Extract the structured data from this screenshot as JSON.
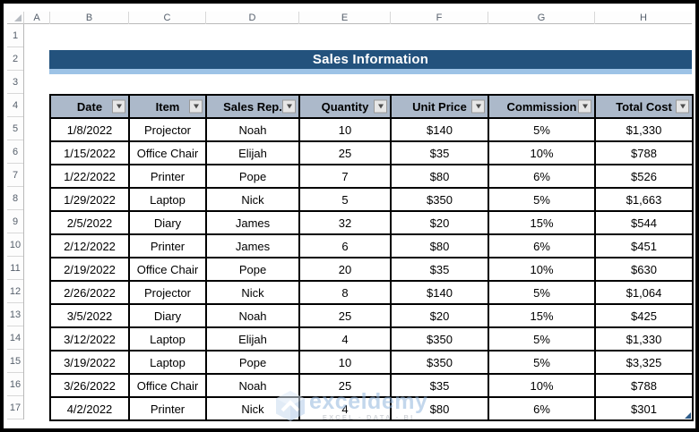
{
  "colors": {
    "banner_bg": "#23527D",
    "banner_accent": "#9DC3E6",
    "header_fill": "#ACB9CA",
    "grid_border": "#000000",
    "watermark_blue": "#93B7DE",
    "chrome_text": "#56606C"
  },
  "title_banner": {
    "text": "Sales Information"
  },
  "spreadsheet": {
    "column_letters": [
      "A",
      "B",
      "C",
      "D",
      "E",
      "F",
      "G",
      "H"
    ],
    "row_numbers": [
      "1",
      "2",
      "3",
      "4",
      "5",
      "6",
      "7",
      "8",
      "9",
      "10",
      "11",
      "12",
      "13",
      "14",
      "15",
      "16",
      "17"
    ]
  },
  "table": {
    "columns": [
      {
        "label": "Date"
      },
      {
        "label": "Item"
      },
      {
        "label": "Sales Rep."
      },
      {
        "label": "Quantity"
      },
      {
        "label": "Unit Price"
      },
      {
        "label": "Commission"
      },
      {
        "label": "Total Cost"
      }
    ],
    "rows": [
      [
        "1/8/2022",
        "Projector",
        "Noah",
        "10",
        "$140",
        "5%",
        "$1,330"
      ],
      [
        "1/15/2022",
        "Office Chair",
        "Elijah",
        "25",
        "$35",
        "10%",
        "$788"
      ],
      [
        "1/22/2022",
        "Printer",
        "Pope",
        "7",
        "$80",
        "6%",
        "$526"
      ],
      [
        "1/29/2022",
        "Laptop",
        "Nick",
        "5",
        "$350",
        "5%",
        "$1,663"
      ],
      [
        "2/5/2022",
        "Diary",
        "James",
        "32",
        "$20",
        "15%",
        "$544"
      ],
      [
        "2/12/2022",
        "Printer",
        "James",
        "6",
        "$80",
        "6%",
        "$451"
      ],
      [
        "2/19/2022",
        "Office Chair",
        "Pope",
        "20",
        "$35",
        "10%",
        "$630"
      ],
      [
        "2/26/2022",
        "Projector",
        "Nick",
        "8",
        "$140",
        "5%",
        "$1,064"
      ],
      [
        "3/5/2022",
        "Diary",
        "Noah",
        "25",
        "$20",
        "15%",
        "$425"
      ],
      [
        "3/12/2022",
        "Laptop",
        "Elijah",
        "4",
        "$350",
        "5%",
        "$1,330"
      ],
      [
        "3/19/2022",
        "Laptop",
        "Pope",
        "10",
        "$350",
        "5%",
        "$3,325"
      ],
      [
        "3/26/2022",
        "Office Chair",
        "Noah",
        "25",
        "$35",
        "10%",
        "$788"
      ],
      [
        "4/2/2022",
        "Printer",
        "Nick",
        "4",
        "$80",
        "6%",
        "$301"
      ]
    ]
  },
  "watermark": {
    "brand": "exceldemy",
    "tagline": "EXCEL - DATA - BI"
  }
}
